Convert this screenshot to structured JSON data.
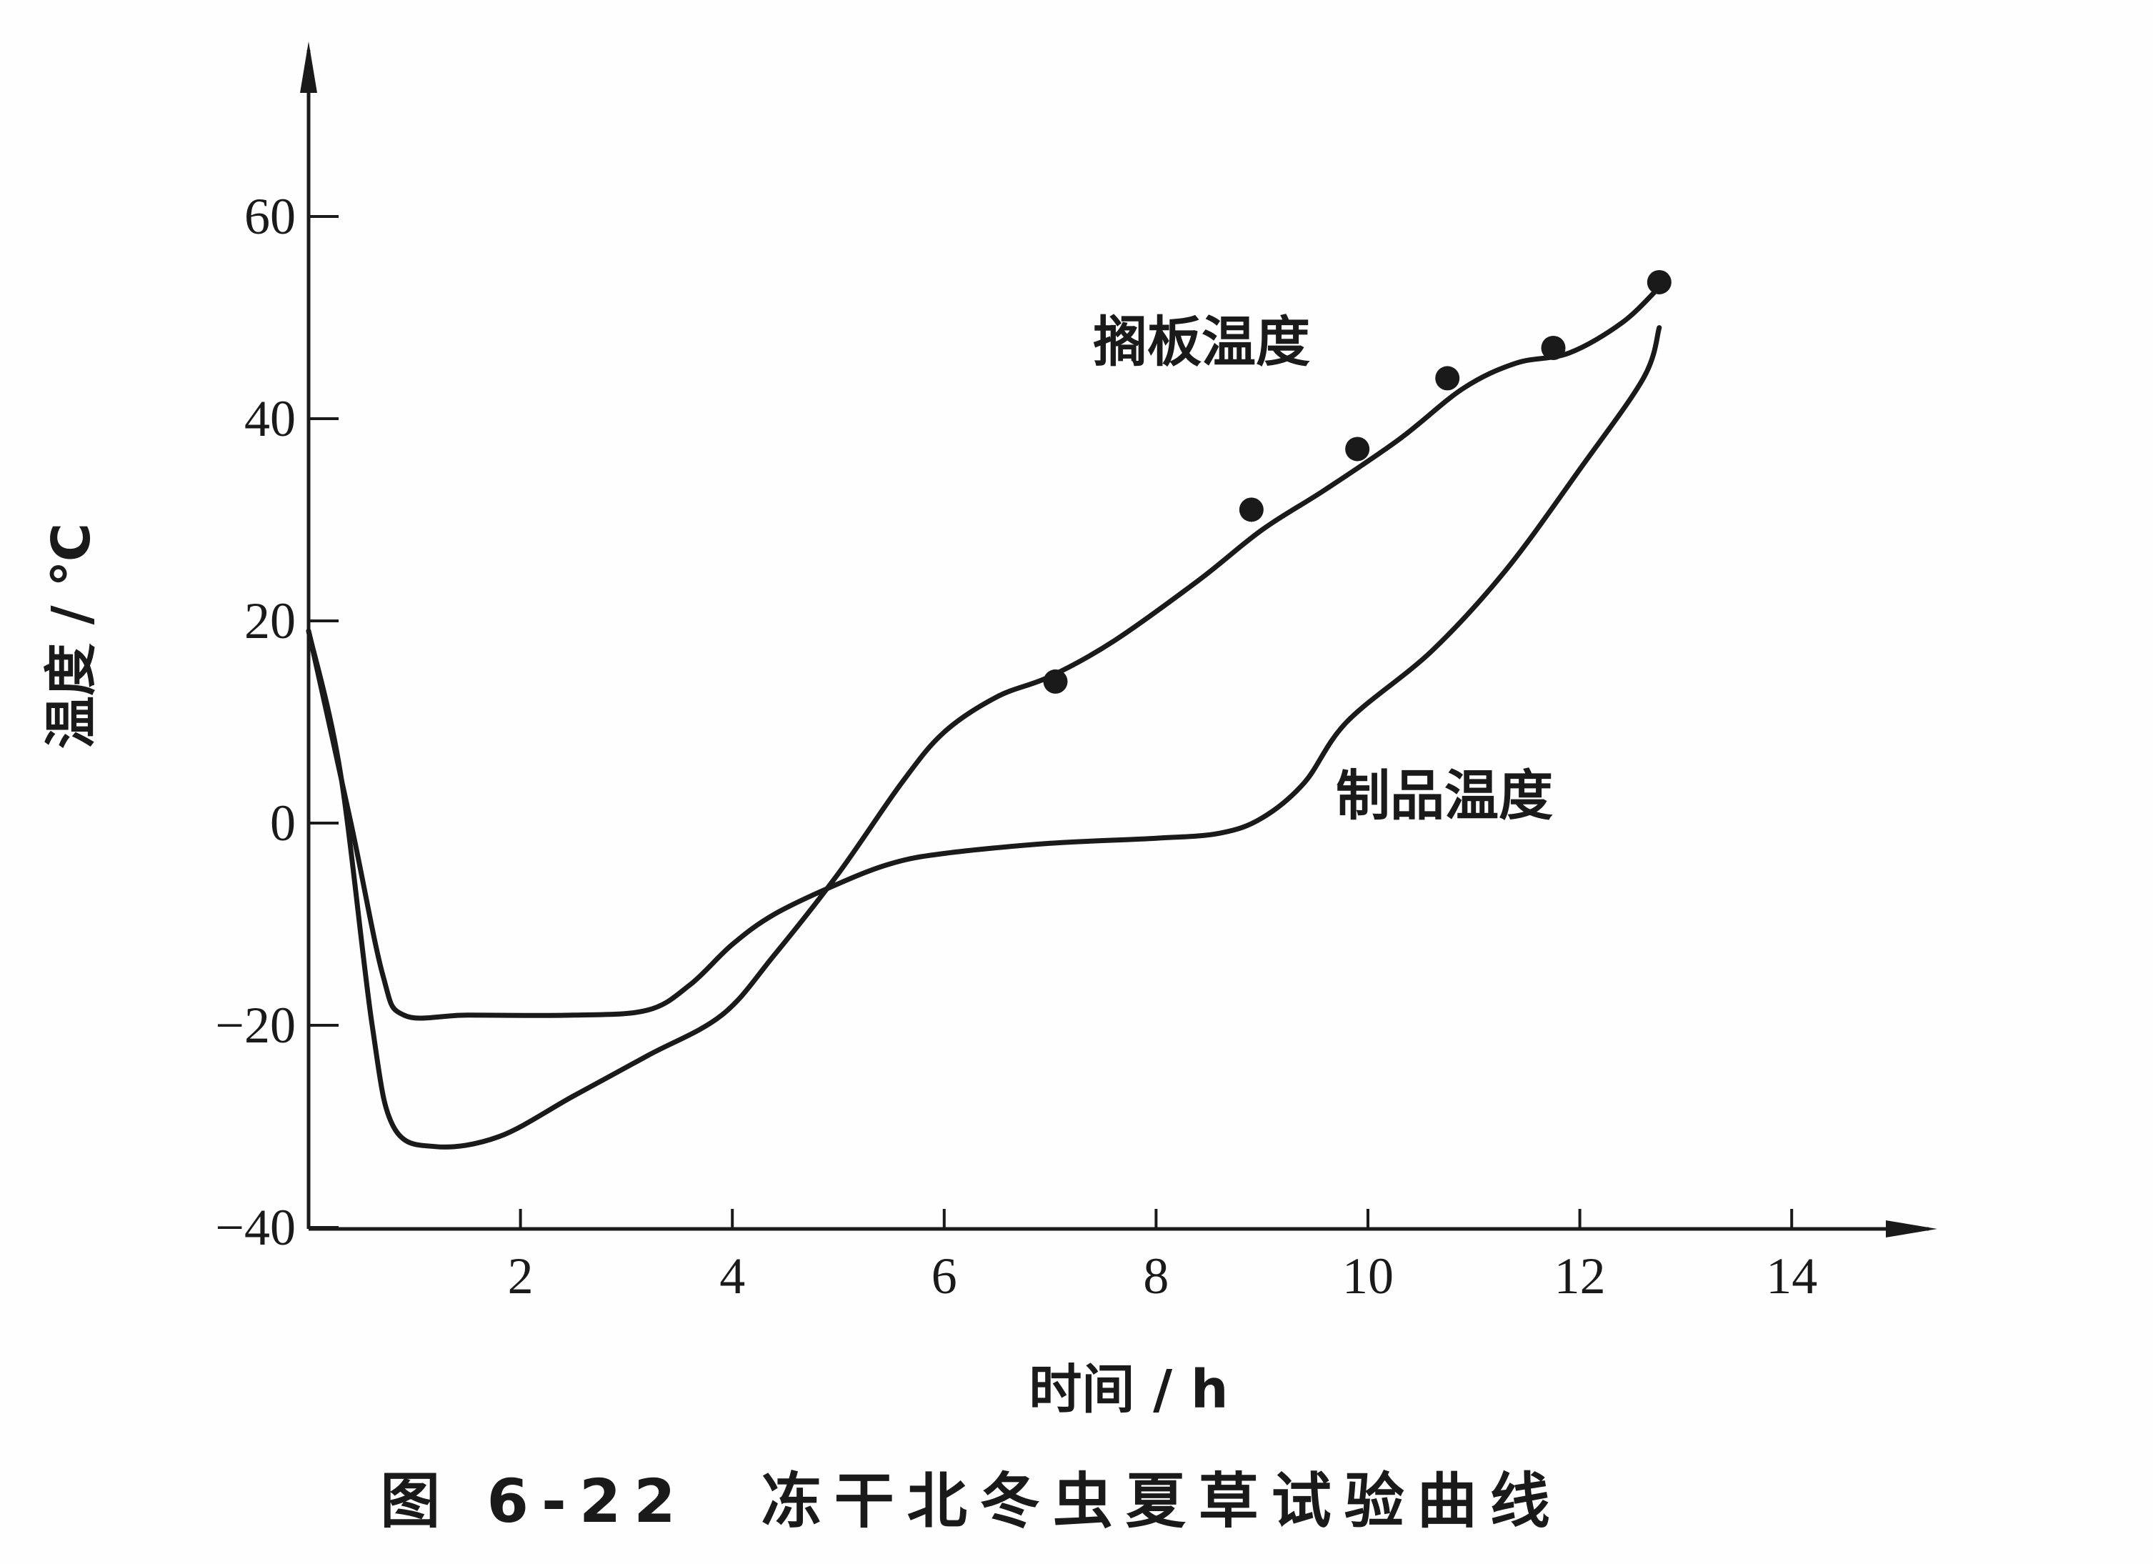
{
  "chart_data": {
    "type": "line",
    "title": "",
    "caption": "图 6-22　冻干北冬虫夏草试验曲线",
    "xlabel": "时间 / h",
    "ylabel": "温度 / ℃",
    "xlim": [
      0,
      15
    ],
    "ylim": [
      -40,
      70
    ],
    "x_ticks": [
      2,
      4,
      6,
      8,
      10,
      12,
      14
    ],
    "y_ticks": [
      -40,
      -20,
      0,
      20,
      40,
      60
    ],
    "grid": false,
    "series": [
      {
        "name": "搁板温度",
        "points": [
          [
            0,
            19
          ],
          [
            0.4,
            0
          ],
          [
            0.7,
            -15
          ],
          [
            0.9,
            -19
          ],
          [
            1.5,
            -19
          ],
          [
            2.5,
            -19
          ],
          [
            3.2,
            -18.5
          ],
          [
            3.6,
            -16
          ],
          [
            4.0,
            -12
          ],
          [
            4.4,
            -9
          ],
          [
            5.0,
            -6
          ],
          [
            5.5,
            -4
          ],
          [
            6.0,
            -3
          ],
          [
            7.0,
            -2
          ],
          [
            8.0,
            -1.5
          ],
          [
            8.6,
            -1
          ],
          [
            9.0,
            0.5
          ],
          [
            9.4,
            4
          ],
          [
            9.8,
            10
          ],
          [
            10.6,
            17
          ],
          [
            11.3,
            25
          ],
          [
            12.0,
            35
          ],
          [
            12.6,
            44
          ],
          [
            12.75,
            49
          ]
        ],
        "markers": [
          [
            7.05,
            14
          ],
          [
            8.9,
            31
          ],
          [
            9.9,
            37
          ],
          [
            10.75,
            44
          ],
          [
            11.75,
            47
          ],
          [
            12.75,
            53.5
          ]
        ]
      },
      {
        "name": "制品温度",
        "points": [
          [
            0,
            19
          ],
          [
            0.3,
            5
          ],
          [
            0.6,
            -20
          ],
          [
            0.8,
            -30
          ],
          [
            1.2,
            -32
          ],
          [
            1.8,
            -31
          ],
          [
            2.5,
            -27
          ],
          [
            3.2,
            -23
          ],
          [
            3.9,
            -19
          ],
          [
            4.4,
            -13
          ],
          [
            5.0,
            -5
          ],
          [
            5.6,
            4
          ],
          [
            6.0,
            9
          ],
          [
            6.5,
            12.5
          ],
          [
            7.0,
            14.5
          ],
          [
            7.6,
            18
          ],
          [
            8.4,
            24
          ],
          [
            9.0,
            29
          ],
          [
            9.6,
            33
          ],
          [
            10.3,
            38
          ],
          [
            10.9,
            43
          ],
          [
            11.4,
            45.5
          ],
          [
            11.9,
            46.5
          ],
          [
            12.4,
            49.5
          ],
          [
            12.75,
            53
          ]
        ]
      }
    ],
    "annotations": [
      {
        "text": "搁板温度",
        "series": "搁板温度"
      },
      {
        "text": "制品温度",
        "series": "制品温度"
      }
    ]
  }
}
